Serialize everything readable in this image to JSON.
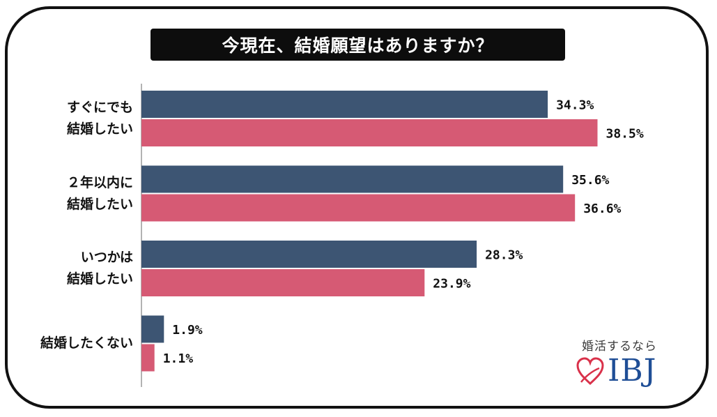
{
  "title": "今現在、結婚願望はありますか？",
  "chart_data": {
    "type": "bar",
    "orientation": "horizontal",
    "categories": [
      [
        "すぐにでも",
        "結婚したい"
      ],
      [
        "２年以内に",
        "結婚したい"
      ],
      [
        "いつかは",
        "結婚したい"
      ],
      [
        "結婚したくない"
      ]
    ],
    "series": [
      {
        "values": [
          34.3,
          35.6,
          28.3,
          1.9
        ],
        "color": "#3d5573"
      },
      {
        "values": [
          38.5,
          36.6,
          23.9,
          1.1
        ],
        "color": "#d65a74"
      }
    ],
    "value_suffix": "%",
    "xlim": [
      0,
      40
    ],
    "grid": false,
    "legend": "none"
  },
  "logo": {
    "tagline": "婚活するなら",
    "text": "IBJ",
    "heart_icon": "heart-outline-icon",
    "heart_color": "#d9314a",
    "text_color": "#1f4e96"
  }
}
